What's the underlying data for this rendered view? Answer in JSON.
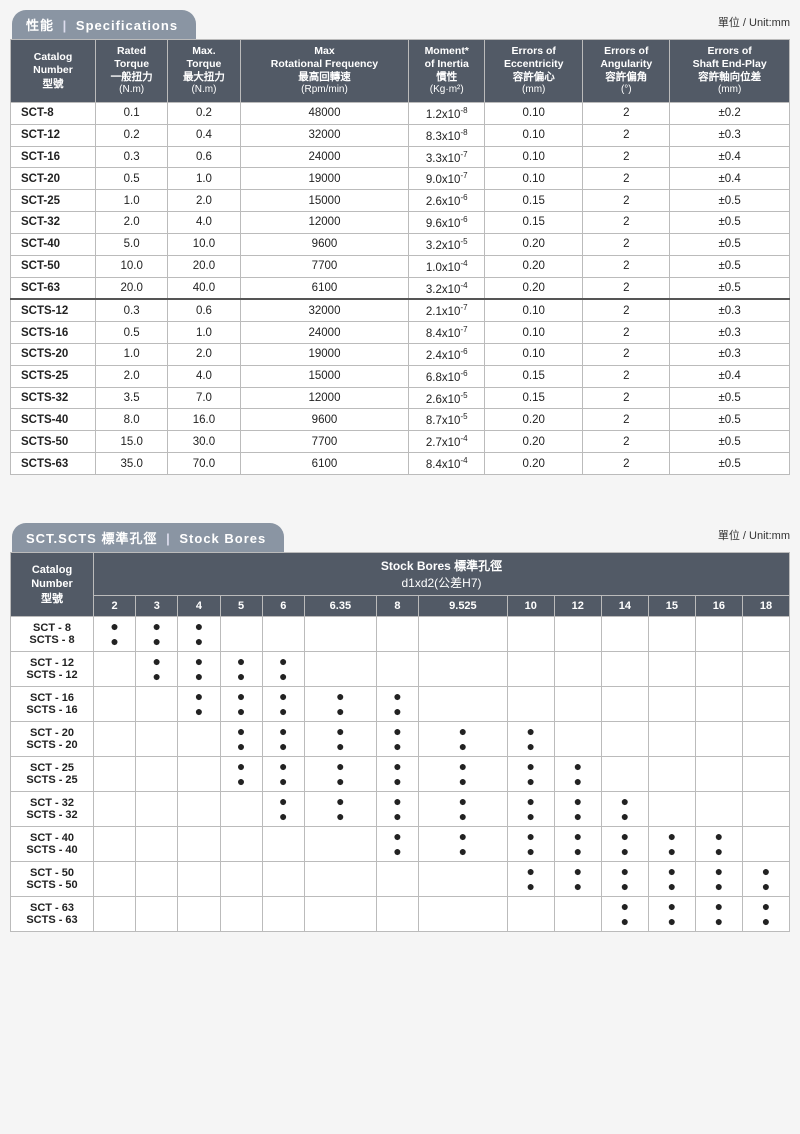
{
  "unit_label": "單位 / Unit:mm",
  "spec_tab": {
    "cn": "性能",
    "sep": "|",
    "en": "Specifications"
  },
  "bore_tab": {
    "pre": "SCT.SCTS",
    "cn": "標準孔徑",
    "sep": "|",
    "en": "Stock Bores"
  },
  "spec_cols": [
    {
      "l1": "Catalog",
      "l2": "Number",
      "cn": "型號",
      "u": ""
    },
    {
      "l1": "Rated",
      "l2": "Torque",
      "cn": "一般扭力",
      "u": "(N.m)"
    },
    {
      "l1": "Max.",
      "l2": "Torque",
      "cn": "最大扭力",
      "u": "(N.m)"
    },
    {
      "l1": "Max",
      "l2": "Rotational Frequency",
      "cn": "最高回轉速",
      "u": "(Rpm/min)"
    },
    {
      "l1": "Moment*",
      "l2": "of Inertia",
      "cn": "慣性",
      "u": "(Kg·m²)"
    },
    {
      "l1": "Errors of",
      "l2": "Eccentricity",
      "cn": "容許偏心",
      "u": "(mm)"
    },
    {
      "l1": "Errors of",
      "l2": "Angularity",
      "cn": "容許偏角",
      "u": "(°)"
    },
    {
      "l1": "Errors of",
      "l2": "Shaft End-Play",
      "cn": "容許軸向位差",
      "u": "(mm)"
    }
  ],
  "spec_rows": [
    [
      "SCT-8",
      "0.1",
      "0.2",
      "48000",
      {
        "b": "1.2",
        "e": "-8"
      },
      "0.10",
      "2",
      "±0.2"
    ],
    [
      "SCT-12",
      "0.2",
      "0.4",
      "32000",
      {
        "b": "8.3",
        "e": "-8"
      },
      "0.10",
      "2",
      "±0.3"
    ],
    [
      "SCT-16",
      "0.3",
      "0.6",
      "24000",
      {
        "b": "3.3",
        "e": "-7"
      },
      "0.10",
      "2",
      "±0.4"
    ],
    [
      "SCT-20",
      "0.5",
      "1.0",
      "19000",
      {
        "b": "9.0",
        "e": "-7"
      },
      "0.10",
      "2",
      "±0.4"
    ],
    [
      "SCT-25",
      "1.0",
      "2.0",
      "15000",
      {
        "b": "2.6",
        "e": "-6"
      },
      "0.15",
      "2",
      "±0.5"
    ],
    [
      "SCT-32",
      "2.0",
      "4.0",
      "12000",
      {
        "b": "9.6",
        "e": "-6"
      },
      "0.15",
      "2",
      "±0.5"
    ],
    [
      "SCT-40",
      "5.0",
      "10.0",
      "9600",
      {
        "b": "3.2",
        "e": "-5"
      },
      "0.20",
      "2",
      "±0.5"
    ],
    [
      "SCT-50",
      "10.0",
      "20.0",
      "7700",
      {
        "b": "1.0",
        "e": "-4"
      },
      "0.20",
      "2",
      "±0.5"
    ],
    [
      "SCT-63",
      "20.0",
      "40.0",
      "6100",
      {
        "b": "3.2",
        "e": "-4"
      },
      "0.20",
      "2",
      "±0.5"
    ],
    [
      "SCTS-12",
      "0.3",
      "0.6",
      "32000",
      {
        "b": "2.1",
        "e": "-7"
      },
      "0.10",
      "2",
      "±0.3"
    ],
    [
      "SCTS-16",
      "0.5",
      "1.0",
      "24000",
      {
        "b": "8.4",
        "e": "-7"
      },
      "0.10",
      "2",
      "±0.3"
    ],
    [
      "SCTS-20",
      "1.0",
      "2.0",
      "19000",
      {
        "b": "2.4",
        "e": "-6"
      },
      "0.10",
      "2",
      "±0.3"
    ],
    [
      "SCTS-25",
      "2.0",
      "4.0",
      "15000",
      {
        "b": "6.8",
        "e": "-6"
      },
      "0.15",
      "2",
      "±0.4"
    ],
    [
      "SCTS-32",
      "3.5",
      "7.0",
      "12000",
      {
        "b": "2.6",
        "e": "-5"
      },
      "0.15",
      "2",
      "±0.5"
    ],
    [
      "SCTS-40",
      "8.0",
      "16.0",
      "9600",
      {
        "b": "8.7",
        "e": "-5"
      },
      "0.20",
      "2",
      "±0.5"
    ],
    [
      "SCTS-50",
      "15.0",
      "30.0",
      "7700",
      {
        "b": "2.7",
        "e": "-4"
      },
      "0.20",
      "2",
      "±0.5"
    ],
    [
      "SCTS-63",
      "35.0",
      "70.0",
      "6100",
      {
        "b": "8.4",
        "e": "-4"
      },
      "0.20",
      "2",
      "±0.5"
    ]
  ],
  "bore_super_title": "Stock Bores 標準孔徑",
  "bore_sub_title": "d1xd2(公差H7)",
  "bore_sizes": [
    "2",
    "3",
    "4",
    "5",
    "6",
    "6.35",
    "8",
    "9.525",
    "10",
    "12",
    "14",
    "15",
    "16",
    "18"
  ],
  "bore_rows": [
    {
      "label": "SCT - 8<br>SCTS - 8",
      "dots": [
        "2",
        "3",
        "4"
      ]
    },
    {
      "label": "SCT - 12<br>SCTS - 12",
      "dots": [
        "3",
        "4",
        "5",
        "6"
      ]
    },
    {
      "label": "SCT - 16<br>SCTS - 16",
      "dots": [
        "4",
        "5",
        "6",
        "6.35",
        "8"
      ]
    },
    {
      "label": "SCT - 20<br>SCTS - 20",
      "dots": [
        "5",
        "6",
        "6.35",
        "8",
        "9.525",
        "10"
      ]
    },
    {
      "label": "SCT - 25<br>SCTS - 25",
      "dots": [
        "5",
        "6",
        "6.35",
        "8",
        "9.525",
        "10",
        "12"
      ]
    },
    {
      "label": "SCT - 32<br>SCTS - 32",
      "dots": [
        "6",
        "6.35",
        "8",
        "9.525",
        "10",
        "12",
        "14"
      ]
    },
    {
      "label": "SCT - 40<br>SCTS - 40",
      "dots": [
        "8",
        "9.525",
        "10",
        "12",
        "14",
        "15",
        "16"
      ]
    },
    {
      "label": "SCT - 50<br>SCTS - 50",
      "dots": [
        "10",
        "12",
        "14",
        "15",
        "16",
        "18"
      ]
    },
    {
      "label": "SCT - 63<br>SCTS - 63",
      "dots": [
        "14",
        "15",
        "16",
        "18"
      ]
    }
  ]
}
